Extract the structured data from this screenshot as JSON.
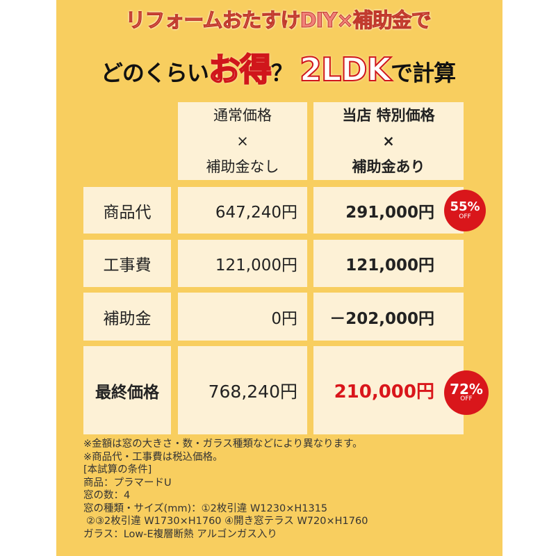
{
  "title": {
    "line1": "リフォームおたすけDIY×補助金で",
    "line2_a": "どのくらい",
    "line2_b": "お得",
    "line2_c": "？ ",
    "line2_d": "2LDK",
    "line2_e": "で計算"
  },
  "table": {
    "headers": [
      {
        "l1": "通常価格",
        "l2": "×",
        "l3": "補助金なし"
      },
      {
        "l1": "当店 特別価格",
        "l2": "×",
        "l3": "補助金あり"
      }
    ],
    "rows": [
      {
        "label": "商品代",
        "normal": "647,240円",
        "special": "291,000円",
        "badge": "55%",
        "badge_sub": "OFF"
      },
      {
        "label": "工事費",
        "normal": "121,000円",
        "special": "121,000円"
      },
      {
        "label": "補助金",
        "normal": "0円",
        "special": "－202,000円"
      },
      {
        "label": "最終価格",
        "normal": "768,240円",
        "special": "210,000円",
        "badge": "72%",
        "badge_sub": "OFF"
      }
    ]
  },
  "notes": [
    "※金額は窓の大きさ・数・ガラス種類などにより異なります。",
    "※商品代・工事費は税込価格。",
    "[本試算の条件]",
    "商品：プラマードU",
    "窓の数：4",
    "窓の種類・サイズ(mm)：①2枚引違 W1230×H1315",
    "②③2枚引違 W1730×H1760 ④開き窓テラス W720×H1760",
    "ガラス：Low-E複層断熱 アルゴンガス入り"
  ],
  "colors": {
    "background": "#F8CE5F",
    "cell": "#FDF1D6",
    "accent": "#D9161B"
  }
}
